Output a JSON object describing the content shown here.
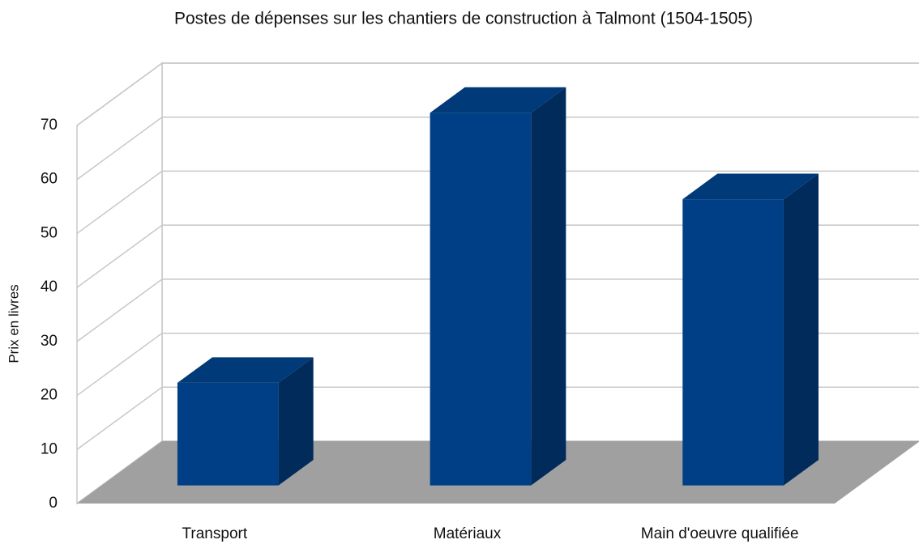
{
  "chart_data": {
    "type": "bar3d",
    "title": "Postes de dépenses sur les chantiers de construction à Talmont (1504-1505)",
    "y_label": "Prix en livres",
    "categories": [
      "Transport",
      "Matériaux",
      "Main d'oeuvre qualifiée"
    ],
    "values": [
      19,
      69,
      53
    ],
    "color": "#003f86",
    "top_color": "#003a78",
    "side_color": "#002b5a",
    "floor_color": "#a0a0a0",
    "ylim": [
      0,
      70
    ],
    "yticks": [
      0,
      10,
      20,
      30,
      40,
      50,
      60,
      70
    ],
    "grid": true
  }
}
